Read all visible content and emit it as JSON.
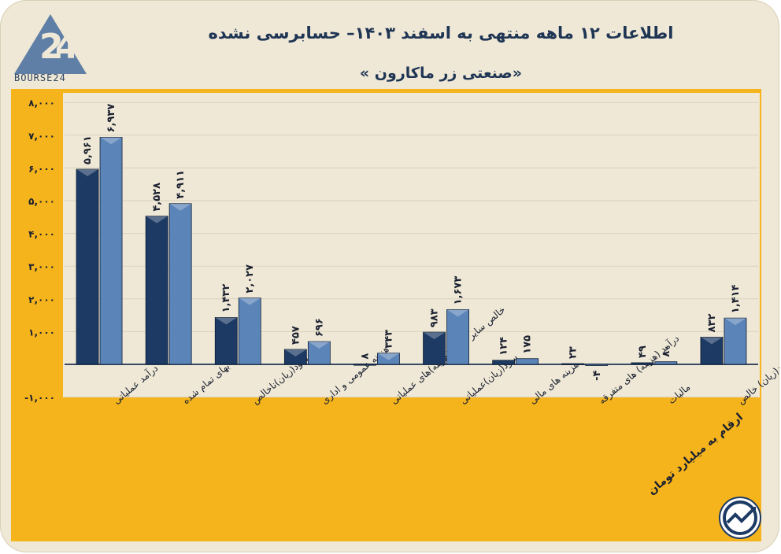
{
  "header": {
    "title": "اطلاعات ۱۲ ماهه منتهی به اسفند ۱۴۰۳– حسابرسی نشده",
    "subtitle": "«صنعتی زر ماکارون »",
    "logo_text": "BOURSE24",
    "unit_note": "ارقام به میلیارد تومان"
  },
  "chart_data": {
    "type": "bar",
    "categories": [
      "درآمد عملیاتی",
      "بهای تمام شده",
      "سود(زیان)ناخالص",
      "هزینه عمومی و اداری",
      "خالص سایر درآمد(هزینه)های عملیاتی",
      "سود(زیان)عملیاتی",
      "هزینه های مالی",
      "درآمد (هزینه) های متفرقه",
      "مالیات",
      "سود(زیان) خالص"
    ],
    "series": [
      {
        "values": [
          5961,
          4528,
          1432,
          457,
          8,
          983,
          124,
          23,
          49,
          832
        ],
        "labels": [
          "۵,۹۶۱",
          "۴,۵۲۸",
          "۱,۴۳۲",
          "۴۵۷",
          "۸",
          "۹۸۳",
          "۱۲۴",
          "۲۳",
          "۴۹",
          "۸۳۲"
        ]
      },
      {
        "values": [
          6937,
          4911,
          2027,
          696,
          343,
          1673,
          175,
          -4,
          80,
          1414
        ],
        "labels": [
          "۶,۹۳۷",
          "۴,۹۱۱",
          "۲,۰۲۷",
          "۶۹۶",
          "۳۴۳",
          "۱,۶۷۳",
          "۱۷۵",
          "-۴",
          "۸۰",
          "۱,۴۱۴"
        ]
      }
    ],
    "y_ticks": [
      -1000,
      0,
      1000,
      2000,
      3000,
      4000,
      5000,
      6000,
      7000,
      8000
    ],
    "y_tick_labels": [
      "-۱,۰۰۰",
      "",
      "۱,۰۰۰",
      "۲,۰۰۰",
      "۳,۰۰۰",
      "۴,۰۰۰",
      "۵,۰۰۰",
      "۶,۰۰۰",
      "۷,۰۰۰",
      "۸,۰۰۰"
    ],
    "ylim": [
      -1000,
      8000
    ],
    "grid": true,
    "colors": {
      "series1": "#1c3a63",
      "series2": "#5b84b8",
      "background": "#f5b41c",
      "plot": "#efe8d6"
    }
  }
}
